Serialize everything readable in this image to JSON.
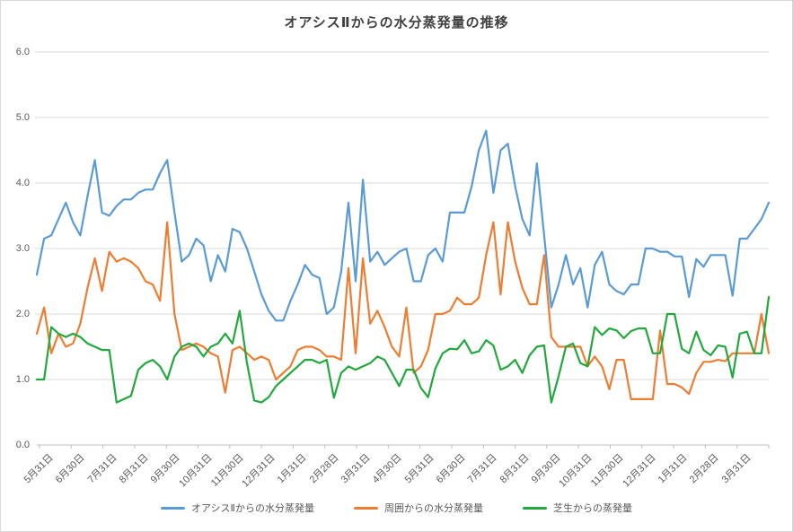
{
  "style": {
    "background": "#ffffff",
    "gridline_color": "#d9d9d9",
    "axis_color": "#bfbfbf",
    "label_text_color": "#595959",
    "title_text_color": "#404040"
  },
  "chart_data": {
    "type": "line",
    "title": "オアシスⅡからの水分蒸発量の推移",
    "xlabel": "",
    "ylabel": "",
    "grid": true,
    "legend_position": "bottom",
    "x_note": "weekly data points spanning 23 monthly tick labels",
    "categories": [
      "5月31日",
      "6月30日",
      "7月31日",
      "8月31日",
      "9月30日",
      "10月31日",
      "11月30日",
      "12月31日",
      "1月31日",
      "2月28日",
      "3月31日",
      "4月30日",
      "5月31日",
      "6月30日",
      "7月31日",
      "8月31日",
      "9月30日",
      "10月31日",
      "11月30日",
      "12月31日",
      "1月31日",
      "2月28日",
      "3月31日"
    ],
    "y_axis": {
      "min": 0,
      "max": 6,
      "tick_step": 1.0,
      "tick_labels": [
        "0.0",
        "1.0",
        "2.0",
        "3.0",
        "4.0",
        "5.0",
        "6.0"
      ]
    },
    "series": [
      {
        "name": "オアシスⅡからの水分蒸発量",
        "color": "#5b9bd5",
        "values": [
          2.6,
          3.15,
          3.2,
          3.45,
          3.7,
          3.4,
          3.2,
          3.8,
          4.35,
          3.55,
          3.5,
          3.65,
          3.75,
          3.75,
          3.85,
          3.9,
          3.9,
          4.15,
          4.35,
          3.55,
          2.8,
          2.9,
          3.15,
          3.05,
          2.5,
          2.9,
          2.65,
          3.3,
          3.25,
          3.0,
          2.65,
          2.3,
          2.05,
          1.9,
          1.9,
          2.2,
          2.45,
          2.75,
          2.6,
          2.55,
          2.0,
          2.1,
          2.65,
          3.7,
          2.5,
          4.05,
          2.8,
          2.95,
          2.75,
          2.85,
          2.95,
          3.0,
          2.5,
          2.5,
          2.9,
          3.0,
          2.8,
          3.55,
          3.55,
          3.55,
          3.95,
          4.5,
          4.8,
          3.85,
          4.5,
          4.6,
          3.95,
          3.45,
          3.2,
          4.3,
          3.2,
          2.1,
          2.45,
          2.9,
          2.45,
          2.7,
          2.1,
          2.75,
          2.95,
          2.45,
          2.35,
          2.3,
          2.45,
          2.45,
          3.0,
          3.0,
          2.95,
          2.95,
          2.88,
          2.88,
          2.26,
          2.84,
          2.72,
          2.9,
          2.9,
          2.9,
          2.28,
          3.15,
          3.15,
          3.3,
          3.45,
          3.7
        ]
      },
      {
        "name": "周囲からの水分蒸発量",
        "color": "#ed7d31",
        "values": [
          1.7,
          2.1,
          1.4,
          1.7,
          1.5,
          1.55,
          1.85,
          2.4,
          2.85,
          2.35,
          2.95,
          2.8,
          2.85,
          2.8,
          2.7,
          2.5,
          2.45,
          2.2,
          3.4,
          2.0,
          1.45,
          1.5,
          1.55,
          1.5,
          1.4,
          1.35,
          0.8,
          1.45,
          1.5,
          1.4,
          1.3,
          1.35,
          1.3,
          1.0,
          1.1,
          1.2,
          1.45,
          1.5,
          1.5,
          1.45,
          1.35,
          1.35,
          1.3,
          2.7,
          1.4,
          2.85,
          1.85,
          2.05,
          1.8,
          1.5,
          1.35,
          2.1,
          1.1,
          1.2,
          1.45,
          2.0,
          2.0,
          2.05,
          2.25,
          2.15,
          2.15,
          2.25,
          2.9,
          3.4,
          2.3,
          3.4,
          2.8,
          2.4,
          2.15,
          2.15,
          2.9,
          1.65,
          1.5,
          1.5,
          1.5,
          1.5,
          1.2,
          1.35,
          1.2,
          0.85,
          1.3,
          1.3,
          0.7,
          0.7,
          0.7,
          0.7,
          1.75,
          0.93,
          0.93,
          0.88,
          0.78,
          1.1,
          1.27,
          1.27,
          1.3,
          1.28,
          1.4,
          1.4,
          1.4,
          1.4,
          2.0,
          1.4
        ]
      },
      {
        "name": "芝生からの蒸発量",
        "color": "#22a83c",
        "values": [
          1.0,
          1.0,
          1.8,
          1.7,
          1.65,
          1.7,
          1.65,
          1.55,
          1.5,
          1.45,
          1.45,
          0.65,
          0.7,
          0.75,
          1.15,
          1.25,
          1.3,
          1.2,
          1.0,
          1.35,
          1.5,
          1.55,
          1.5,
          1.35,
          1.5,
          1.55,
          1.7,
          1.55,
          2.05,
          1.25,
          0.68,
          0.65,
          0.73,
          0.9,
          1.0,
          1.1,
          1.2,
          1.3,
          1.3,
          1.25,
          1.3,
          0.72,
          1.1,
          1.2,
          1.15,
          1.2,
          1.25,
          1.35,
          1.3,
          1.1,
          0.9,
          1.15,
          1.15,
          0.87,
          0.73,
          1.17,
          1.4,
          1.47,
          1.46,
          1.6,
          1.4,
          1.43,
          1.6,
          1.52,
          1.15,
          1.2,
          1.3,
          1.1,
          1.37,
          1.5,
          1.52,
          0.65,
          1.05,
          1.5,
          1.55,
          1.25,
          1.2,
          1.8,
          1.68,
          1.78,
          1.75,
          1.63,
          1.74,
          1.78,
          1.78,
          1.4,
          1.4,
          2.0,
          2.0,
          1.47,
          1.4,
          1.73,
          1.45,
          1.37,
          1.52,
          1.5,
          1.03,
          1.7,
          1.73,
          1.4,
          1.4,
          2.26
        ]
      }
    ]
  }
}
